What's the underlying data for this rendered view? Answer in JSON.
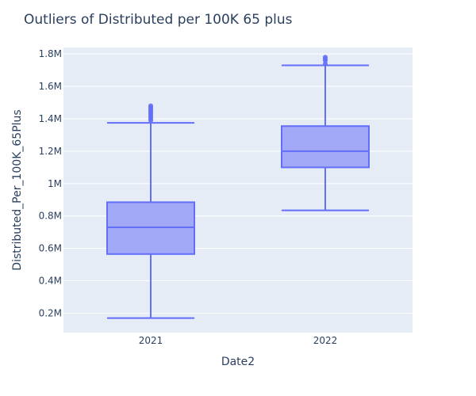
{
  "chart_data": {
    "type": "box",
    "title": "Outliers of Distributed per 100K 65 plus",
    "xlabel": "Date2",
    "ylabel": "Distributed_Per_100K_65Plus",
    "categories": [
      "2021",
      "2022"
    ],
    "ylim": [
      80000,
      1840000
    ],
    "yticks": [
      200000,
      400000,
      600000,
      800000,
      1000000,
      1200000,
      1400000,
      1600000,
      1800000
    ],
    "ytick_labels": [
      "0.2M",
      "0.4M",
      "0.6M",
      "0.8M",
      "1M",
      "1.2M",
      "1.4M",
      "1.6M",
      "1.8M"
    ],
    "grid": true,
    "colors": {
      "line": "#636efa",
      "fill": "#a1a8f6",
      "plot_bg": "#e5ecf6",
      "grid": "#ffffff",
      "text": "#2a3f5f"
    },
    "boxes": [
      {
        "category": "2021",
        "min": 170000,
        "q1": 565000,
        "median": 730000,
        "q3": 885000,
        "max": 1375000,
        "outliers": [
          1390000,
          1400000,
          1410000,
          1420000,
          1430000,
          1440000,
          1450000,
          1460000,
          1470000,
          1480000
        ]
      },
      {
        "category": "2022",
        "min": 835000,
        "q1": 1100000,
        "median": 1200000,
        "q3": 1355000,
        "max": 1730000,
        "outliers": [
          1740000,
          1760000,
          1770000,
          1780000
        ]
      }
    ]
  }
}
